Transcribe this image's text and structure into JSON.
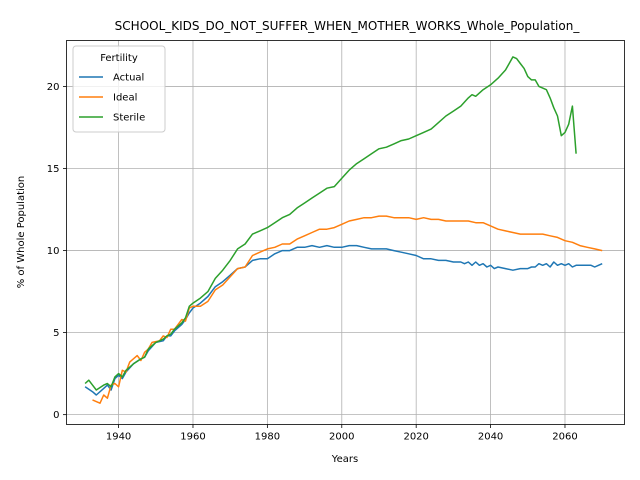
{
  "chart_data": {
    "type": "line",
    "title": "SCHOOL_KIDS_DO_NOT_SUFFER_WHEN_MOTHER_WORKS_Whole_Population_",
    "xlabel": "Years",
    "ylabel": "% of Whole Population",
    "xlim": [
      1926,
      2076
    ],
    "ylim": [
      -0.6,
      22.8
    ],
    "xticks": [
      1940,
      1960,
      1980,
      2000,
      2020,
      2040,
      2060
    ],
    "yticks": [
      0,
      5,
      10,
      15,
      20
    ],
    "grid": true,
    "legend": {
      "title": "Fertility",
      "placement": "top-left"
    },
    "series": [
      {
        "name": "Actual",
        "color": "#1f77b4",
        "points": [
          [
            1931,
            1.7
          ],
          [
            1933,
            1.4
          ],
          [
            1934,
            1.2
          ],
          [
            1936,
            1.6
          ],
          [
            1937,
            1.8
          ],
          [
            1938,
            1.5
          ],
          [
            1939,
            2.2
          ],
          [
            1940,
            2.4
          ],
          [
            1941,
            2.2
          ],
          [
            1942,
            2.6
          ],
          [
            1944,
            3.1
          ],
          [
            1946,
            3.4
          ],
          [
            1947,
            3.5
          ],
          [
            1948,
            3.9
          ],
          [
            1950,
            4.4
          ],
          [
            1952,
            4.5
          ],
          [
            1953,
            4.8
          ],
          [
            1954,
            4.8
          ],
          [
            1955,
            5.1
          ],
          [
            1957,
            5.5
          ],
          [
            1958,
            5.8
          ],
          [
            1959,
            6.2
          ],
          [
            1960,
            6.5
          ],
          [
            1962,
            6.8
          ],
          [
            1964,
            7.2
          ],
          [
            1966,
            7.8
          ],
          [
            1968,
            8.1
          ],
          [
            1970,
            8.5
          ],
          [
            1972,
            8.9
          ],
          [
            1974,
            9.0
          ],
          [
            1976,
            9.4
          ],
          [
            1978,
            9.5
          ],
          [
            1980,
            9.5
          ],
          [
            1982,
            9.8
          ],
          [
            1984,
            10.0
          ],
          [
            1986,
            10.0
          ],
          [
            1988,
            10.2
          ],
          [
            1990,
            10.2
          ],
          [
            1992,
            10.3
          ],
          [
            1994,
            10.2
          ],
          [
            1996,
            10.3
          ],
          [
            1998,
            10.2
          ],
          [
            2000,
            10.2
          ],
          [
            2002,
            10.3
          ],
          [
            2004,
            10.3
          ],
          [
            2006,
            10.2
          ],
          [
            2008,
            10.1
          ],
          [
            2010,
            10.1
          ],
          [
            2012,
            10.1
          ],
          [
            2014,
            10.0
          ],
          [
            2016,
            9.9
          ],
          [
            2018,
            9.8
          ],
          [
            2020,
            9.7
          ],
          [
            2022,
            9.5
          ],
          [
            2024,
            9.5
          ],
          [
            2026,
            9.4
          ],
          [
            2028,
            9.4
          ],
          [
            2030,
            9.3
          ],
          [
            2032,
            9.3
          ],
          [
            2033,
            9.2
          ],
          [
            2034,
            9.3
          ],
          [
            2035,
            9.1
          ],
          [
            2036,
            9.3
          ],
          [
            2037,
            9.1
          ],
          [
            2038,
            9.2
          ],
          [
            2039,
            9.0
          ],
          [
            2040,
            9.1
          ],
          [
            2041,
            8.9
          ],
          [
            2042,
            9.0
          ],
          [
            2044,
            8.9
          ],
          [
            2046,
            8.8
          ],
          [
            2048,
            8.9
          ],
          [
            2050,
            8.9
          ],
          [
            2051,
            9.0
          ],
          [
            2052,
            9.0
          ],
          [
            2053,
            9.2
          ],
          [
            2054,
            9.1
          ],
          [
            2055,
            9.2
          ],
          [
            2056,
            9.0
          ],
          [
            2057,
            9.3
          ],
          [
            2058,
            9.1
          ],
          [
            2059,
            9.2
          ],
          [
            2060,
            9.1
          ],
          [
            2061,
            9.2
          ],
          [
            2062,
            9.0
          ],
          [
            2063,
            9.1
          ],
          [
            2064,
            9.1
          ],
          [
            2065,
            9.1
          ],
          [
            2066,
            9.1
          ],
          [
            2067,
            9.1
          ],
          [
            2068,
            9.0
          ],
          [
            2069,
            9.1
          ],
          [
            2070,
            9.2
          ]
        ]
      },
      {
        "name": "Ideal",
        "color": "#ff7f0e",
        "points": [
          [
            1933,
            0.9
          ],
          [
            1935,
            0.7
          ],
          [
            1936,
            1.2
          ],
          [
            1937,
            1.0
          ],
          [
            1938,
            1.8
          ],
          [
            1939,
            1.9
          ],
          [
            1940,
            1.7
          ],
          [
            1941,
            2.7
          ],
          [
            1942,
            2.6
          ],
          [
            1943,
            3.2
          ],
          [
            1945,
            3.6
          ],
          [
            1946,
            3.3
          ],
          [
            1947,
            3.8
          ],
          [
            1948,
            4.0
          ],
          [
            1949,
            4.4
          ],
          [
            1951,
            4.5
          ],
          [
            1952,
            4.8
          ],
          [
            1953,
            4.7
          ],
          [
            1954,
            5.2
          ],
          [
            1955,
            5.2
          ],
          [
            1956,
            5.5
          ],
          [
            1957,
            5.8
          ],
          [
            1958,
            5.7
          ],
          [
            1959,
            6.5
          ],
          [
            1960,
            6.6
          ],
          [
            1962,
            6.6
          ],
          [
            1964,
            6.9
          ],
          [
            1966,
            7.6
          ],
          [
            1968,
            7.9
          ],
          [
            1970,
            8.4
          ],
          [
            1972,
            8.9
          ],
          [
            1974,
            9.0
          ],
          [
            1976,
            9.7
          ],
          [
            1978,
            9.9
          ],
          [
            1980,
            10.1
          ],
          [
            1982,
            10.2
          ],
          [
            1984,
            10.4
          ],
          [
            1986,
            10.4
          ],
          [
            1988,
            10.7
          ],
          [
            1990,
            10.9
          ],
          [
            1992,
            11.1
          ],
          [
            1994,
            11.3
          ],
          [
            1996,
            11.3
          ],
          [
            1998,
            11.4
          ],
          [
            2000,
            11.6
          ],
          [
            2002,
            11.8
          ],
          [
            2004,
            11.9
          ],
          [
            2006,
            12.0
          ],
          [
            2008,
            12.0
          ],
          [
            2010,
            12.1
          ],
          [
            2012,
            12.1
          ],
          [
            2014,
            12.0
          ],
          [
            2016,
            12.0
          ],
          [
            2018,
            12.0
          ],
          [
            2020,
            11.9
          ],
          [
            2022,
            12.0
          ],
          [
            2024,
            11.9
          ],
          [
            2026,
            11.9
          ],
          [
            2028,
            11.8
          ],
          [
            2030,
            11.8
          ],
          [
            2032,
            11.8
          ],
          [
            2034,
            11.8
          ],
          [
            2036,
            11.7
          ],
          [
            2038,
            11.7
          ],
          [
            2040,
            11.5
          ],
          [
            2042,
            11.3
          ],
          [
            2044,
            11.2
          ],
          [
            2046,
            11.1
          ],
          [
            2048,
            11.0
          ],
          [
            2050,
            11.0
          ],
          [
            2052,
            11.0
          ],
          [
            2054,
            11.0
          ],
          [
            2056,
            10.9
          ],
          [
            2058,
            10.8
          ],
          [
            2060,
            10.6
          ],
          [
            2062,
            10.5
          ],
          [
            2064,
            10.3
          ],
          [
            2066,
            10.2
          ],
          [
            2068,
            10.1
          ],
          [
            2070,
            10.0
          ]
        ]
      },
      {
        "name": "Sterile",
        "color": "#2ca02c",
        "points": [
          [
            1931,
            1.9
          ],
          [
            1932,
            2.1
          ],
          [
            1933,
            1.8
          ],
          [
            1934,
            1.5
          ],
          [
            1936,
            1.8
          ],
          [
            1937,
            1.9
          ],
          [
            1938,
            1.7
          ],
          [
            1939,
            2.3
          ],
          [
            1940,
            2.5
          ],
          [
            1941,
            2.3
          ],
          [
            1942,
            2.7
          ],
          [
            1944,
            3.1
          ],
          [
            1946,
            3.4
          ],
          [
            1947,
            3.5
          ],
          [
            1948,
            4.0
          ],
          [
            1950,
            4.4
          ],
          [
            1952,
            4.6
          ],
          [
            1953,
            4.8
          ],
          [
            1954,
            4.9
          ],
          [
            1955,
            5.2
          ],
          [
            1957,
            5.6
          ],
          [
            1958,
            5.9
          ],
          [
            1959,
            6.6
          ],
          [
            1960,
            6.8
          ],
          [
            1962,
            7.1
          ],
          [
            1964,
            7.5
          ],
          [
            1966,
            8.3
          ],
          [
            1968,
            8.8
          ],
          [
            1970,
            9.4
          ],
          [
            1972,
            10.1
          ],
          [
            1974,
            10.4
          ],
          [
            1976,
            11.0
          ],
          [
            1978,
            11.2
          ],
          [
            1980,
            11.4
          ],
          [
            1982,
            11.7
          ],
          [
            1984,
            12.0
          ],
          [
            1986,
            12.2
          ],
          [
            1988,
            12.6
          ],
          [
            1990,
            12.9
          ],
          [
            1992,
            13.2
          ],
          [
            1994,
            13.5
          ],
          [
            1996,
            13.8
          ],
          [
            1998,
            13.9
          ],
          [
            2000,
            14.4
          ],
          [
            2002,
            14.9
          ],
          [
            2004,
            15.3
          ],
          [
            2006,
            15.6
          ],
          [
            2008,
            15.9
          ],
          [
            2010,
            16.2
          ],
          [
            2012,
            16.3
          ],
          [
            2014,
            16.5
          ],
          [
            2016,
            16.7
          ],
          [
            2018,
            16.8
          ],
          [
            2020,
            17.0
          ],
          [
            2022,
            17.2
          ],
          [
            2024,
            17.4
          ],
          [
            2026,
            17.8
          ],
          [
            2028,
            18.2
          ],
          [
            2030,
            18.5
          ],
          [
            2032,
            18.8
          ],
          [
            2034,
            19.3
          ],
          [
            2035,
            19.5
          ],
          [
            2036,
            19.4
          ],
          [
            2038,
            19.8
          ],
          [
            2040,
            20.1
          ],
          [
            2042,
            20.5
          ],
          [
            2044,
            21.0
          ],
          [
            2045,
            21.4
          ],
          [
            2046,
            21.8
          ],
          [
            2047,
            21.7
          ],
          [
            2048,
            21.4
          ],
          [
            2049,
            21.1
          ],
          [
            2050,
            20.6
          ],
          [
            2051,
            20.4
          ],
          [
            2052,
            20.4
          ],
          [
            2053,
            20.0
          ],
          [
            2054,
            19.9
          ],
          [
            2055,
            19.8
          ],
          [
            2056,
            19.3
          ],
          [
            2057,
            18.7
          ],
          [
            2058,
            18.2
          ],
          [
            2059,
            17.0
          ],
          [
            2060,
            17.2
          ],
          [
            2061,
            17.7
          ],
          [
            2062,
            18.8
          ],
          [
            2063,
            15.9
          ]
        ]
      }
    ]
  }
}
